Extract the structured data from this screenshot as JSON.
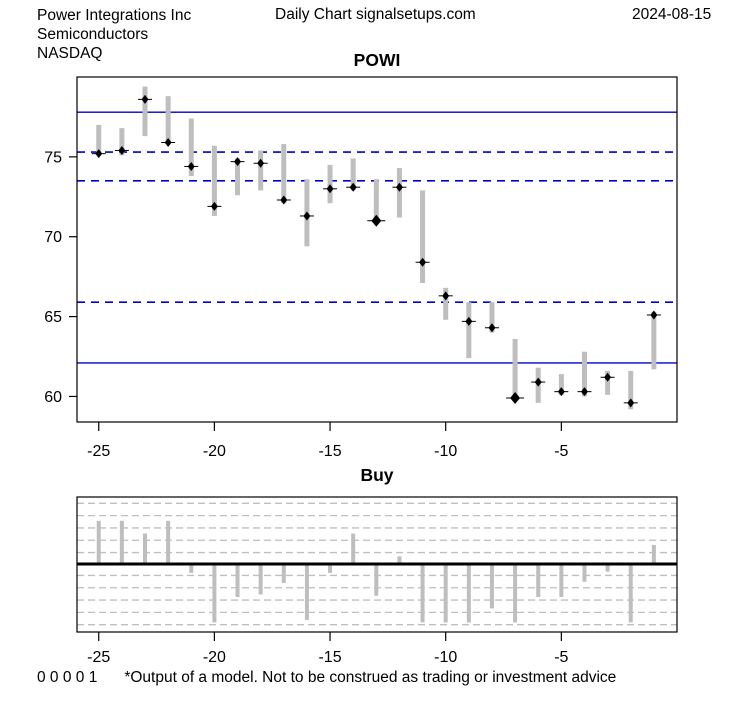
{
  "header": {
    "company": "Power Integrations Inc",
    "sector": "Semiconductors",
    "exchange": "NASDAQ",
    "chart_type": "Daily Chart signalsetups.com",
    "date": "2024-08-15"
  },
  "footer": {
    "model_output": "0 0 0 0 1",
    "disclaimer": "*Output of a model. Not to be construed as trading or investment advice"
  },
  "chart_data": [
    {
      "type": "bar",
      "subtype": "high-low-close",
      "title": "POWI",
      "xlabel": "",
      "ylabel": "",
      "x": [
        -25,
        -24,
        -23,
        -22,
        -21,
        -20,
        -19,
        -18,
        -17,
        -16,
        -15,
        -14,
        -13,
        -12,
        -11,
        -10,
        -9,
        -8,
        -7,
        -6,
        -5,
        -4,
        -3,
        -2,
        -1
      ],
      "series": [
        {
          "name": "high",
          "values": [
            77.0,
            76.8,
            79.4,
            78.8,
            77.4,
            75.7,
            74.9,
            75.4,
            75.8,
            73.6,
            74.5,
            74.9,
            73.6,
            74.3,
            72.9,
            66.8,
            65.9,
            65.9,
            63.6,
            61.8,
            61.4,
            62.8,
            61.6,
            61.6,
            65.3
          ]
        },
        {
          "name": "low",
          "values": [
            75.1,
            75.1,
            76.3,
            75.8,
            73.8,
            71.3,
            72.6,
            72.9,
            72.1,
            69.4,
            72.1,
            72.9,
            71.1,
            71.2,
            67.1,
            64.8,
            62.4,
            64.0,
            59.7,
            59.6,
            60.1,
            60.0,
            60.1,
            59.2,
            61.7
          ]
        },
        {
          "name": "close",
          "values": [
            75.2,
            75.4,
            78.6,
            75.9,
            74.4,
            71.9,
            74.7,
            74.6,
            72.3,
            71.3,
            73.0,
            73.1,
            71.0,
            73.1,
            68.4,
            66.3,
            64.7,
            64.3,
            59.9,
            60.9,
            60.3,
            60.3,
            61.2,
            59.6,
            65.1
          ]
        }
      ],
      "emphasized_marker_x": [
        -13,
        -7
      ],
      "reference_lines": {
        "solid": [
          77.8,
          62.1
        ],
        "dashed": [
          75.3,
          73.5,
          65.9
        ]
      },
      "ylim": [
        58.4,
        80.0
      ],
      "yticks": [
        60,
        65,
        70,
        75
      ],
      "xticks": [
        -25,
        -20,
        -15,
        -10,
        -5
      ],
      "grid": "off",
      "legend": "none",
      "colors": {
        "bar": "#bebebe",
        "marker": "#000000",
        "reference": "#0000cd",
        "axis": "#000000"
      }
    },
    {
      "type": "bar",
      "title": "Buy",
      "xlabel": "",
      "ylabel": "",
      "x": [
        -25,
        -24,
        -23,
        -22,
        -21,
        -20,
        -19,
        -18,
        -17,
        -16,
        -15,
        -14,
        -13,
        -12,
        -11,
        -10,
        -9,
        -8,
        -7,
        -6,
        -5,
        -4,
        -3,
        -2,
        -1
      ],
      "values": [
        3.4,
        3.4,
        2.4,
        3.4,
        -0.7,
        -4.6,
        -2.6,
        -2.4,
        -1.5,
        -4.4,
        -0.7,
        2.4,
        -2.5,
        0.6,
        -4.6,
        -4.6,
        -4.6,
        -3.5,
        -4.6,
        -2.6,
        -2.6,
        -1.4,
        -0.6,
        -4.6,
        1.5
      ],
      "ylim": [
        -5.3,
        5.3
      ],
      "xticks": [
        -25,
        -20,
        -15,
        -10,
        -5
      ],
      "gridline_values": [
        0.9,
        1.87,
        2.84,
        3.81,
        4.78
      ],
      "zero_line": true,
      "grid": "dashed-horizontal",
      "legend": "none",
      "colors": {
        "bar": "#bebebe",
        "grid": "#bfbfbf",
        "zero_line": "#000000"
      }
    }
  ]
}
